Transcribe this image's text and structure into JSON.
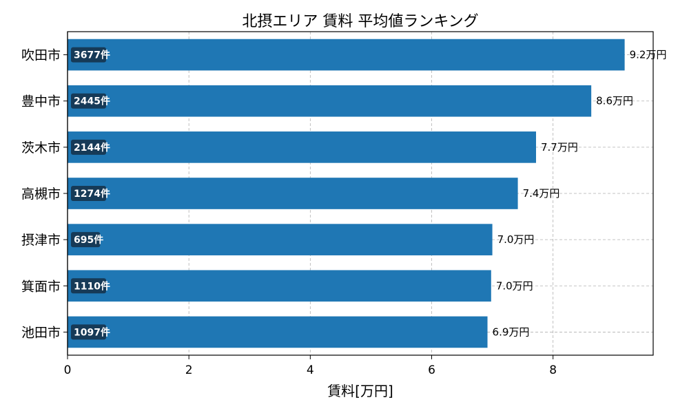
{
  "chart_data": {
    "type": "bar",
    "orientation": "horizontal",
    "title": "北摂エリア 賃料 平均値ランキング",
    "xlabel": "賃料[万円]",
    "ylabel": "",
    "xlim": [
      0,
      9.65
    ],
    "xticks": [
      0,
      2,
      4,
      6,
      8
    ],
    "grid": true,
    "bar_color": "#1f77b4",
    "badge_color": "#163a57",
    "value_unit": "万円",
    "count_unit": "件",
    "categories": [
      "吹田市",
      "豊中市",
      "茨木市",
      "高槻市",
      "摂津市",
      "箕面市",
      "池田市"
    ],
    "values": [
      9.18,
      8.63,
      7.72,
      7.42,
      7.0,
      6.98,
      6.92
    ],
    "value_labels": [
      "9.2万円",
      "8.6万円",
      "7.7万円",
      "7.4万円",
      "7.0万円",
      "7.0万円",
      "6.9万円"
    ],
    "counts": [
      3677,
      2445,
      2144,
      1274,
      695,
      1110,
      1097
    ],
    "count_labels": [
      "3677件",
      "2445件",
      "2144件",
      "1274件",
      "695件",
      "1110件",
      "1097件"
    ]
  }
}
